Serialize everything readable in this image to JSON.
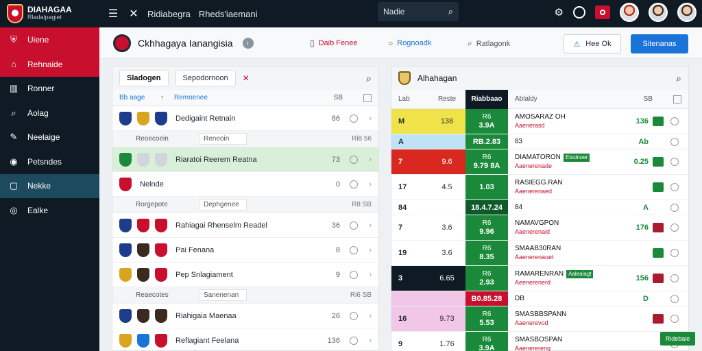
{
  "brand": {
    "name": "DIAHAGAA",
    "sub": "Rladalpagiet"
  },
  "topbar": {
    "title": "Ridiabegra",
    "subtitle": "Rheds'iaemani",
    "search_placeholder": "Nadie"
  },
  "sidebar": {
    "items": [
      {
        "label": "Uiene",
        "icon": "crest-icon"
      },
      {
        "label": "Rehnaide",
        "icon": "home-icon"
      },
      {
        "label": "Ronner",
        "icon": "stats-icon"
      },
      {
        "label": "Aolag",
        "icon": "search-icon"
      },
      {
        "label": "Neelaige",
        "icon": "edit-icon"
      },
      {
        "label": "Petsndes",
        "icon": "globe-icon"
      },
      {
        "label": "Nekke",
        "icon": "square-icon"
      },
      {
        "label": "Ealke",
        "icon": "target-icon"
      }
    ]
  },
  "subheader": {
    "club_name": "Ckhhagaya Ianangisia",
    "links": [
      {
        "label": "Daib Fenee"
      },
      {
        "label": "Rognoadk"
      },
      {
        "label": "Ratlagonk"
      }
    ],
    "outline_button": "Hee Ok",
    "primary_button": "Sitenanas"
  },
  "left_panel": {
    "tab_active": "Sladogen",
    "tab_other": "Sepodornoon",
    "header": {
      "c1": "Bb aage",
      "c2": "↑",
      "c3": "Remoenee",
      "c4": "SB"
    },
    "rows": [
      {
        "type": "match",
        "name": "Dedigaint Retnain",
        "score": "86",
        "colors": [
          "#1f3b8c",
          "#d9a520",
          "#1f3b8c"
        ],
        "hl": false
      },
      {
        "type": "group",
        "name": "Reoecoein",
        "field": "Reneoin",
        "score": "Ri8 56"
      },
      {
        "type": "match",
        "name": "Riaratoi Reerem Reatna",
        "score": "73",
        "colors": [
          "#1a8a3a",
          "#cfd6dc",
          "#cfd6dc"
        ],
        "hl": true
      },
      {
        "type": "match",
        "name": "Nelnde",
        "score": "0",
        "colors": [
          "#c8102e"
        ],
        "hl": false
      },
      {
        "type": "group",
        "name": "Rorgepote",
        "field": "Dephgenee",
        "score": "R8 SB"
      },
      {
        "type": "match",
        "name": "Rahiagai Rhenselm Readel",
        "score": "36",
        "colors": [
          "#1f3b8c",
          "#c8102e",
          "#c8102e"
        ],
        "hl": false
      },
      {
        "type": "match",
        "name": "Pai Fenana",
        "score": "8",
        "colors": [
          "#1f3b8c",
          "#3a2a20",
          "#c8102e"
        ],
        "hl": false
      },
      {
        "type": "match",
        "name": "Pep Snlagiament",
        "score": "9",
        "colors": [
          "#d9a520",
          "#3a2a20",
          "#c8102e"
        ],
        "hl": false
      },
      {
        "type": "group",
        "name": "Reaecotes",
        "field": "Sanenenan",
        "score": "Ri6 SB"
      },
      {
        "type": "match",
        "name": "Riahigaia Maenaa",
        "score": "26",
        "colors": [
          "#1f3b8c",
          "#3a2a20",
          "#3a2a20"
        ],
        "hl": false
      },
      {
        "type": "match",
        "name": "Reflagiant Feelana",
        "score": "136",
        "colors": [
          "#d9a520",
          "#1a73d9",
          "#c8102e"
        ],
        "hl": false
      }
    ]
  },
  "right_panel": {
    "title": "Alhahagan",
    "header": {
      "a": "Lab",
      "b": "Reste",
      "c": "Riabbaao",
      "d": "Ablaldy",
      "e": "SB"
    },
    "rows": [
      {
        "a": "M",
        "b": "138",
        "c1": "R6",
        "c2": "3.9A",
        "d": "AMOSARAZ OH",
        "sub": "Aaenerasd",
        "tag": "",
        "e": "136",
        "bg": "#f0e34a",
        "cbg": "#1a8a3a",
        "g": "#1a8a3a",
        "sm": false
      },
      {
        "a": "A",
        "b": "",
        "c1": "",
        "c2": "RB.2.83",
        "d": "83",
        "sub": "",
        "tag": "",
        "e": "Ab",
        "bg": "#bfe3f5",
        "cbg": "#1a8a3a",
        "g": "",
        "sm": true
      },
      {
        "a": "7",
        "b": "9.6",
        "c1": "R6",
        "c2": "9.79 8A",
        "d": "DIAMATORON",
        "sub": "Aaenerenade",
        "tag": "Etodnoer",
        "e": "0.25",
        "bg": "#d9281f",
        "cbg": "#1a8a3a",
        "g": "#1a8a3a",
        "sm": false
      },
      {
        "a": "17",
        "b": "4.5",
        "c1": "",
        "c2": "1.03",
        "d": "RASIEGG.RAN",
        "sub": "Aaenerenaed",
        "tag": "",
        "e": "",
        "bg": "#ffffff",
        "cbg": "#1a8a3a",
        "g": "#1a8a3a",
        "sm": false
      },
      {
        "a": "84",
        "b": "",
        "c1": "",
        "c2": "18.4.7.24",
        "d": "84",
        "sub": "",
        "tag": "",
        "e": "A",
        "bg": "#ffffff",
        "cbg": "#0f5a2a",
        "g": "",
        "sm": true
      },
      {
        "a": "7",
        "b": "3.6",
        "c1": "R6",
        "c2": "9.96",
        "d": "NAMAVGPON",
        "sub": "Aaenerenaid",
        "tag": "",
        "e": "176",
        "bg": "#ffffff",
        "cbg": "#1a8a3a",
        "g": "#a81c2e",
        "sm": false
      },
      {
        "a": "19",
        "b": "3.6",
        "c1": "R6",
        "c2": "8.35",
        "d": "SMAAB30RAN",
        "sub": "Aaenerenauet",
        "tag": "",
        "e": "",
        "bg": "#ffffff",
        "cbg": "#1a8a3a",
        "g": "#1a8a3a",
        "sm": false
      },
      {
        "a": "3",
        "b": "6.65",
        "c1": "R6",
        "c2": "2.93",
        "d": "RAMARENRAN",
        "sub": "Aeenerenerd",
        "tag": "Aalealagt",
        "e": "156",
        "bg": "#0f1a24",
        "cbg": "#1a8a3a",
        "g": "#a81c2e",
        "sm": false
      },
      {
        "a": "",
        "b": "",
        "c1": "",
        "c2": "B0.85.28",
        "d": "DB",
        "sub": "",
        "tag": "",
        "e": "D",
        "bg": "#f2c6e6",
        "cbg": "#c8102e",
        "g": "",
        "sm": true
      },
      {
        "a": "16",
        "b": "9.73",
        "c1": "R6",
        "c2": "5.53",
        "d": "SMASBBSPANN",
        "sub": "Aaenerevod",
        "tag": "",
        "e": "",
        "bg": "#f2c6e6",
        "cbg": "#1a8a3a",
        "g": "#a81c2e",
        "sm": false
      },
      {
        "a": "9",
        "b": "1.76",
        "c1": "R6",
        "c2": "3.9A",
        "d": "SMASBOSPAN",
        "sub": "Aaenerereng",
        "tag": "",
        "e": "",
        "bg": "#ffffff",
        "cbg": "#1a8a3a",
        "g": "",
        "sm": false
      }
    ],
    "live_button": "Ridebaie"
  },
  "colors": {
    "accent": "#c8102e",
    "primary": "#1a73d9",
    "dark": "#0f1a24",
    "green": "#1a8a3a"
  }
}
